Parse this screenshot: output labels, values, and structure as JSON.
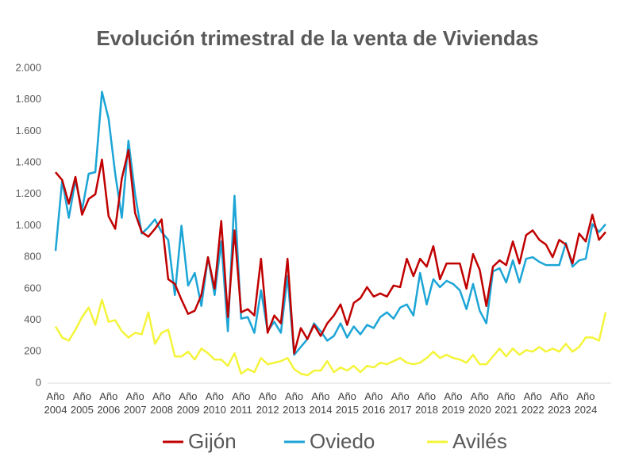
{
  "chart_data": {
    "type": "line",
    "title": "Evolución trimestral de la venta de Viviendas",
    "categories": [
      "Año 2004",
      null,
      null,
      null,
      "Año 2005",
      null,
      null,
      null,
      "Año 2006",
      null,
      null,
      null,
      "Año 2007",
      null,
      null,
      null,
      "Año 2008",
      null,
      null,
      null,
      "Año 2009",
      null,
      null,
      null,
      "Año 2010",
      null,
      null,
      null,
      "Año 2011",
      null,
      null,
      null,
      "Año 2012",
      null,
      null,
      null,
      "Año 2013",
      null,
      null,
      null,
      "Año 2014",
      null,
      null,
      null,
      "Año 2015",
      null,
      null,
      null,
      "Año 2016",
      null,
      null,
      null,
      "Año 2017",
      null,
      null,
      null,
      "Año 2018",
      null,
      null,
      null,
      "Año 2019",
      null,
      null,
      null,
      "Año 2020",
      null,
      null,
      null,
      "Año 2021",
      null,
      null,
      null,
      "Año 2022",
      null,
      null,
      null,
      "Año 2023",
      null,
      null,
      null,
      "Año 2024",
      null,
      null,
      null
    ],
    "series": [
      {
        "name": "Gijón",
        "color": "#c00000",
        "values": [
          1340,
          1290,
          1140,
          1310,
          1070,
          1170,
          1200,
          1420,
          1060,
          980,
          1300,
          1480,
          1080,
          960,
          930,
          980,
          1040,
          660,
          630,
          530,
          440,
          460,
          560,
          800,
          600,
          1030,
          420,
          970,
          450,
          470,
          430,
          790,
          320,
          430,
          380,
          790,
          190,
          350,
          280,
          370,
          300,
          380,
          430,
          500,
          370,
          510,
          540,
          610,
          550,
          570,
          550,
          620,
          610,
          790,
          680,
          790,
          740,
          870,
          660,
          760,
          760,
          760,
          600,
          820,
          720,
          490,
          740,
          780,
          750,
          900,
          760,
          940,
          970,
          910,
          880,
          800,
          910,
          880,
          760,
          950,
          900,
          1070,
          910,
          960
        ]
      },
      {
        "name": "Oviedo",
        "color": "#1ca5d6",
        "values": [
          840,
          1290,
          1050,
          1290,
          1100,
          1330,
          1340,
          1850,
          1680,
          1330,
          1050,
          1540,
          1200,
          950,
          990,
          1040,
          960,
          910,
          560,
          1000,
          620,
          700,
          490,
          800,
          560,
          900,
          330,
          1190,
          410,
          420,
          320,
          590,
          330,
          390,
          320,
          680,
          180,
          230,
          280,
          380,
          330,
          270,
          300,
          380,
          290,
          360,
          310,
          370,
          350,
          420,
          450,
          410,
          480,
          500,
          430,
          700,
          500,
          660,
          610,
          650,
          630,
          590,
          470,
          630,
          460,
          380,
          710,
          730,
          640,
          780,
          640,
          790,
          800,
          770,
          750,
          750,
          750,
          890,
          740,
          780,
          790,
          1010,
          960,
          1010
        ]
      },
      {
        "name": "Avilés",
        "color": "#f4f43a",
        "values": [
          360,
          290,
          270,
          340,
          420,
          480,
          370,
          530,
          390,
          400,
          330,
          290,
          320,
          310,
          450,
          250,
          320,
          340,
          170,
          170,
          200,
          150,
          220,
          190,
          150,
          150,
          110,
          190,
          60,
          90,
          70,
          160,
          120,
          130,
          140,
          160,
          90,
          60,
          50,
          80,
          80,
          140,
          70,
          100,
          80,
          110,
          70,
          110,
          100,
          130,
          120,
          140,
          160,
          130,
          120,
          130,
          160,
          200,
          160,
          180,
          160,
          150,
          130,
          180,
          120,
          120,
          170,
          220,
          170,
          220,
          180,
          210,
          200,
          230,
          200,
          220,
          200,
          250,
          200,
          230,
          290,
          290,
          270,
          450
        ]
      }
    ],
    "ylim": [
      0,
      2000
    ],
    "yticks": [
      0,
      {
        "value": 200,
        "label": "200"
      },
      {
        "value": 400,
        "label": "400"
      },
      {
        "value": 600,
        "label": "600"
      },
      {
        "value": 800,
        "label": "800"
      },
      {
        "value": 1000,
        "label": "1.000"
      },
      {
        "value": 1200,
        "label": "1.200"
      },
      {
        "value": 1400,
        "label": "1.400"
      },
      {
        "value": 1600,
        "label": "1.600"
      },
      {
        "value": 1800,
        "label": "1.800"
      },
      {
        "value": 2000,
        "label": "2.000"
      }
    ],
    "grid": false,
    "legend": "bottom"
  }
}
